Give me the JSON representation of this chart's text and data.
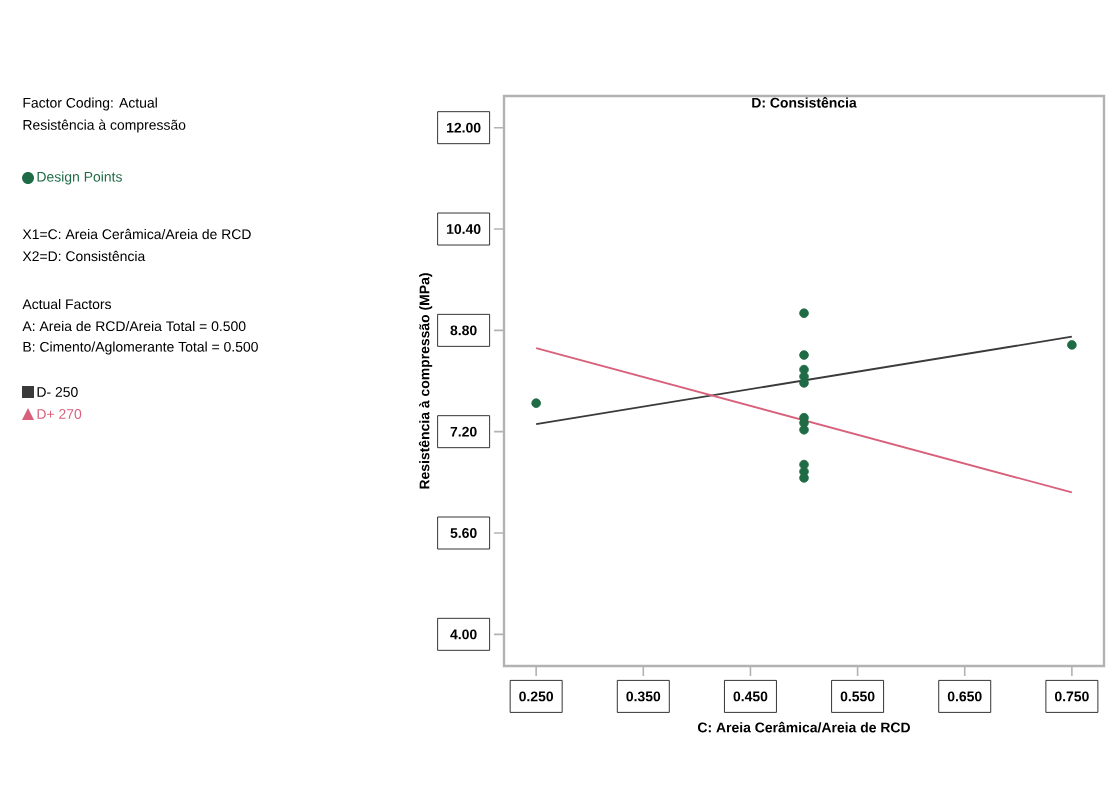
{
  "chart_data": {
    "type": "line",
    "title": "D: Consistência",
    "xlabel": "C: Areia Cerâmica/Areia de RCD",
    "ylabel": "Resistência à compressão (MPa)",
    "xlim": [
      0.22,
      0.78
    ],
    "ylim": [
      3.5,
      12.5
    ],
    "xticks": [
      {
        "value": 0.25,
        "label": "0.250"
      },
      {
        "value": 0.35,
        "label": "0.350"
      },
      {
        "value": 0.45,
        "label": "0.450"
      },
      {
        "value": 0.55,
        "label": "0.550"
      },
      {
        "value": 0.65,
        "label": "0.650"
      },
      {
        "value": 0.75,
        "label": "0.750"
      }
    ],
    "yticks": [
      {
        "value": 4.0,
        "label": "4.00"
      },
      {
        "value": 5.6,
        "label": "5.60"
      },
      {
        "value": 7.2,
        "label": "7.20"
      },
      {
        "value": 8.8,
        "label": "8.80"
      },
      {
        "value": 10.4,
        "label": "10.40"
      },
      {
        "value": 12.0,
        "label": "12.00"
      }
    ],
    "grid": false,
    "legend": "left",
    "series": [
      {
        "name": "Design Points",
        "type": "scatter",
        "marker": "circle",
        "color": "#1e6b45",
        "x": [
          0.25,
          0.5,
          0.5,
          0.5,
          0.5,
          0.5,
          0.5,
          0.5,
          0.5,
          0.5,
          0.5,
          0.5,
          0.75
        ],
        "values": [
          7.65,
          9.07,
          8.41,
          8.18,
          8.07,
          7.97,
          7.42,
          7.34,
          7.23,
          6.68,
          6.57,
          6.47,
          8.57
        ]
      },
      {
        "name": "D- 250",
        "marker": "none",
        "color": "#3a3a3a",
        "x": [
          0.25,
          0.75
        ],
        "values": [
          7.32,
          8.7
        ]
      },
      {
        "name": "D+ 270",
        "marker": "none",
        "color": "#d9607a",
        "x": [
          0.25,
          0.75
        ],
        "values": [
          8.52,
          6.24
        ]
      }
    ],
    "annotations": [
      "Factor Coding: Actual",
      "Resistência à compressão",
      "X1=C: Areia Cerâmica/Areia de RCD",
      "X2=D:  Consistência",
      "Actual Factors",
      "A: Areia de RCD/Areia Total = 0.500",
      "B: Cimento/Aglomerante Total = 0.500"
    ]
  }
}
